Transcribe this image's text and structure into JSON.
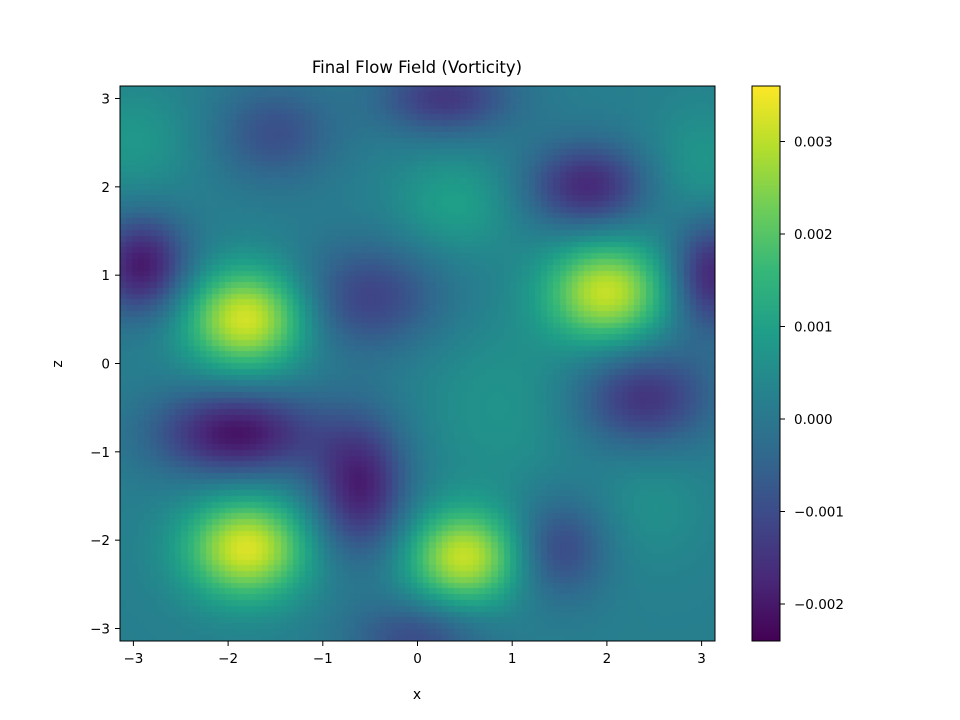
{
  "chart_data": {
    "type": "heatmap",
    "title": "Final Flow Field (Vorticity)",
    "xlabel": "x",
    "ylabel": "z",
    "xlim": [
      -3.1416,
      3.1416
    ],
    "ylim": [
      -3.1416,
      3.1416
    ],
    "xticks": [
      -3,
      -2,
      -1,
      0,
      1,
      2,
      3
    ],
    "yticks": [
      -3,
      -2,
      -1,
      0,
      1,
      2,
      3
    ],
    "xtick_labels": [
      "−3",
      "−2",
      "−1",
      "0",
      "1",
      "2",
      "3"
    ],
    "ytick_labels": [
      "−3",
      "−2",
      "−1",
      "0",
      "1",
      "2",
      "3"
    ],
    "colormap": "viridis",
    "colorbar": {
      "vmin": -0.0024,
      "vmax": 0.0036,
      "ticks": [
        -0.002,
        -0.001,
        0.0,
        0.001,
        0.002,
        0.003
      ],
      "tick_labels": [
        "−0.002",
        "−0.001",
        "0.000",
        "0.001",
        "0.002",
        "0.003"
      ]
    },
    "background_value": 0.0002,
    "features": [
      {
        "x": -1.8,
        "z": 0.5,
        "value": 0.0033,
        "sx": 0.45,
        "sz": 0.4
      },
      {
        "x": -1.8,
        "z": -2.1,
        "value": 0.0033,
        "sx": 0.45,
        "sz": 0.4
      },
      {
        "x": 0.5,
        "z": -2.2,
        "value": 0.0031,
        "sx": 0.42,
        "sz": 0.38
      },
      {
        "x": 2.0,
        "z": 0.8,
        "value": 0.0031,
        "sx": 0.45,
        "sz": 0.4
      },
      {
        "x": 0.4,
        "z": 1.8,
        "value": 0.001,
        "sx": 0.45,
        "sz": 0.4
      },
      {
        "x": -3.0,
        "z": 2.5,
        "value": 0.0008,
        "sx": 0.45,
        "sz": 0.45
      },
      {
        "x": 3.0,
        "z": 2.2,
        "value": 0.0008,
        "sx": 0.4,
        "sz": 0.5
      },
      {
        "x": 0.9,
        "z": -0.5,
        "value": 0.0007,
        "sx": 0.6,
        "sz": 0.7
      },
      {
        "x": 2.5,
        "z": -1.6,
        "value": 0.0006,
        "sx": 0.4,
        "sz": 0.5
      },
      {
        "x": -0.3,
        "z": 0.3,
        "value": 0.0004,
        "sx": 0.5,
        "sz": 0.4
      },
      {
        "x": -2.9,
        "z": 1.1,
        "value": -0.002,
        "sx": 0.35,
        "sz": 0.4
      },
      {
        "x": -1.9,
        "z": -0.8,
        "value": -0.0021,
        "sx": 0.6,
        "sz": 0.35
      },
      {
        "x": -0.6,
        "z": -1.4,
        "value": -0.0019,
        "sx": 0.35,
        "sz": 0.55
      },
      {
        "x": 1.8,
        "z": 2.0,
        "value": -0.0017,
        "sx": 0.45,
        "sz": 0.35
      },
      {
        "x": 3.1,
        "z": 1.0,
        "value": -0.0018,
        "sx": 0.3,
        "sz": 0.45
      },
      {
        "x": -0.5,
        "z": 0.7,
        "value": -0.0013,
        "sx": 0.55,
        "sz": 0.45
      },
      {
        "x": 2.4,
        "z": -0.4,
        "value": -0.0015,
        "sx": 0.5,
        "sz": 0.4
      },
      {
        "x": 0.3,
        "z": 3.0,
        "value": -0.0014,
        "sx": 0.5,
        "sz": 0.3
      },
      {
        "x": -1.5,
        "z": 2.6,
        "value": -0.0009,
        "sx": 0.45,
        "sz": 0.4
      },
      {
        "x": 1.5,
        "z": -2.1,
        "value": -0.0011,
        "sx": 0.35,
        "sz": 0.4
      },
      {
        "x": 0.0,
        "z": -3.1,
        "value": -0.001,
        "sx": 0.5,
        "sz": 0.3
      }
    ]
  }
}
